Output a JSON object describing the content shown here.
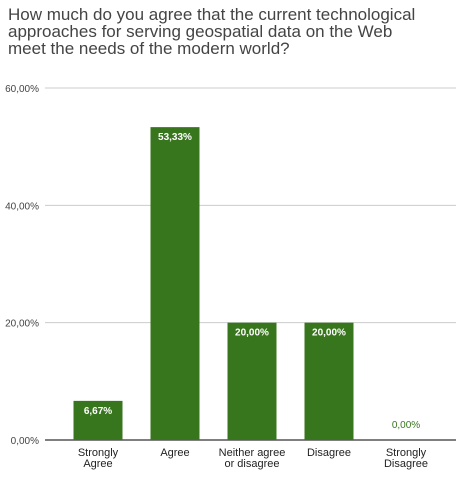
{
  "chart_data": {
    "type": "bar",
    "title": "How much do you agree that the current technological\napproaches for serving geospatial data on the Web\nmeet the needs of the modern world?",
    "categories": [
      "Strongly\nAgree",
      "Agree",
      "Neither agree\nor disagree",
      "Disagree",
      "Strongly\nDisagree"
    ],
    "values": [
      6.67,
      53.33,
      20.0,
      20.0,
      0.0
    ],
    "value_labels": [
      "6,67%",
      "53,33%",
      "20,00%",
      "20,00%",
      "0,00%"
    ],
    "y_ticks": [
      0,
      20,
      40,
      60
    ],
    "y_tick_labels": [
      "0,00%",
      "20,00%",
      "40,00%",
      "60,00%"
    ],
    "ylim": [
      0,
      60
    ],
    "xlabel": "",
    "ylabel": "",
    "grid": true,
    "legend": "none",
    "bar_color": "#38761d",
    "label_inside_color": "#ffffff",
    "label_outside_color": "#38761d"
  }
}
